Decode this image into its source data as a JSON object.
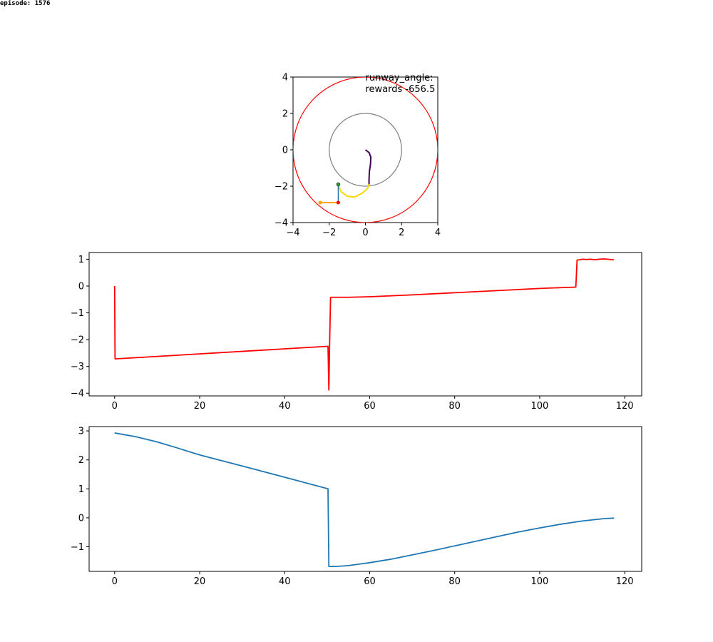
{
  "episode_label": "episode: 1576",
  "chart_data": [
    {
      "type": "scatter",
      "panel": "trajectory",
      "xlim": [
        -4,
        4
      ],
      "ylim": [
        -4,
        4
      ],
      "xticks": [
        -4,
        -2,
        0,
        2,
        4
      ],
      "yticks": [
        -4,
        -2,
        0,
        2,
        4
      ],
      "grid": false,
      "annotations": [
        "runway_angle:",
        "rewards -656.5"
      ],
      "colors": {
        "outer_circle": "#ff0000",
        "inner_circle": "#808080",
        "trajectory_start": "#440154",
        "trajectory_end": "#fde725",
        "approach": "#ffd700",
        "marker_green": "#2ca02c",
        "marker_orange": "#ffa500",
        "marker_red": "#ff0000",
        "axis_blue": "#1f77b4"
      },
      "outer_circle_radius": 4,
      "inner_circle_radius": 2,
      "trajectory": [
        [
          0,
          0
        ],
        [
          0.2,
          -0.15
        ],
        [
          0.3,
          -0.4
        ],
        [
          0.28,
          -0.8
        ],
        [
          0.22,
          -1.2
        ],
        [
          0.2,
          -1.6
        ],
        [
          0.2,
          -1.9
        ]
      ],
      "approach_path": [
        [
          0.2,
          -1.9
        ],
        [
          0.1,
          -2.15
        ],
        [
          -0.2,
          -2.4
        ],
        [
          -0.6,
          -2.6
        ],
        [
          -1.0,
          -2.55
        ],
        [
          -1.35,
          -2.3
        ],
        [
          -1.5,
          -1.95
        ]
      ],
      "marker_green": [
        -1.5,
        -1.9
      ],
      "marker_red": [
        -1.5,
        -2.9
      ],
      "marker_orange": [
        -2.5,
        -2.9
      ]
    },
    {
      "type": "line",
      "panel": "middle",
      "xlim": [
        -6,
        124
      ],
      "ylim": [
        -4.1,
        1.25
      ],
      "xticks": [
        0,
        20,
        40,
        60,
        80,
        100,
        120
      ],
      "yticks": [
        -4,
        -3,
        -2,
        -1,
        0,
        1
      ],
      "grid": false,
      "series": [
        {
          "color": "#ff0000",
          "x": [
            0,
            0.1,
            50,
            50.2,
            50.4,
            50.6,
            50.8,
            51,
            55,
            60,
            70,
            80,
            90,
            100,
            108.5,
            108.8,
            109.5,
            110,
            111,
            112,
            113,
            114,
            115,
            116,
            117,
            117.5
          ],
          "y": [
            0,
            -2.72,
            -2.25,
            -2.25,
            -3.88,
            -2.0,
            -0.42,
            -0.42,
            -0.42,
            -0.4,
            -0.33,
            -0.25,
            -0.17,
            -0.09,
            -0.04,
            0.97,
            0.98,
            1.0,
            0.99,
            1.0,
            0.98,
            1.0,
            1.01,
            1.0,
            0.98,
            0.98
          ]
        }
      ]
    },
    {
      "type": "line",
      "panel": "bottom",
      "xlim": [
        -6,
        124
      ],
      "ylim": [
        -1.85,
        3.15
      ],
      "xticks": [
        0,
        20,
        40,
        60,
        80,
        100,
        120
      ],
      "yticks": [
        -1,
        0,
        1,
        2,
        3
      ],
      "grid": false,
      "series": [
        {
          "color": "#1f77b4",
          "x": [
            0,
            5,
            10,
            15,
            20,
            30,
            40,
            50.2,
            50.4,
            52,
            55,
            60,
            65,
            70,
            75,
            80,
            85,
            90,
            95,
            100,
            105,
            110,
            115,
            117.5
          ],
          "y": [
            2.93,
            2.8,
            2.62,
            2.4,
            2.17,
            1.79,
            1.4,
            1.0,
            -1.68,
            -1.68,
            -1.65,
            -1.55,
            -1.43,
            -1.28,
            -1.13,
            -0.97,
            -0.81,
            -0.65,
            -0.49,
            -0.35,
            -0.22,
            -0.11,
            -0.03,
            -0.01
          ]
        }
      ]
    }
  ]
}
